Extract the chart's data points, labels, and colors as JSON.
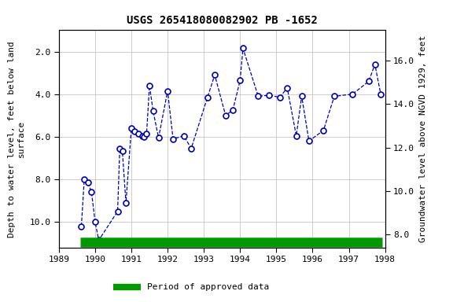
{
  "title": "USGS 265418080082902 PB -1652",
  "ylabel_left": "Depth to water level, feet below land\nsurface",
  "ylabel_right": "Groundwater level above NGVD 1929, feet",
  "legend_label": "Period of approved data",
  "xlim": [
    1989.0,
    1998.0
  ],
  "ylim_left": [
    11.2,
    1.0
  ],
  "ylim_right": [
    7.4,
    17.4
  ],
  "yticks_left": [
    2.0,
    4.0,
    6.0,
    8.0,
    10.0
  ],
  "yticks_right": [
    8.0,
    10.0,
    12.0,
    14.0,
    16.0
  ],
  "xticks": [
    1989,
    1990,
    1991,
    1992,
    1993,
    1994,
    1995,
    1996,
    1997,
    1998
  ],
  "data_x": [
    1989.62,
    1989.7,
    1989.8,
    1989.9,
    1990.0,
    1990.1,
    1990.62,
    1990.68,
    1990.75,
    1990.85,
    1991.0,
    1991.08,
    1991.2,
    1991.3,
    1991.35,
    1991.42,
    1991.5,
    1991.6,
    1991.75,
    1992.0,
    1992.15,
    1992.45,
    1992.65,
    1993.1,
    1993.3,
    1993.6,
    1993.8,
    1994.0,
    1994.08,
    1994.5,
    1994.8,
    1995.1,
    1995.3,
    1995.55,
    1995.7,
    1995.9,
    1996.3,
    1996.6,
    1997.1,
    1997.55,
    1997.72,
    1997.88
  ],
  "data_y": [
    10.2,
    8.0,
    8.15,
    8.6,
    10.0,
    10.85,
    9.5,
    6.55,
    6.65,
    9.1,
    5.6,
    5.75,
    5.85,
    5.95,
    6.0,
    5.85,
    3.6,
    4.8,
    6.05,
    3.85,
    6.1,
    5.95,
    6.55,
    4.15,
    3.1,
    5.0,
    4.75,
    3.35,
    1.85,
    4.1,
    4.05,
    4.15,
    3.7,
    5.95,
    4.1,
    6.2,
    5.7,
    4.1,
    4.0,
    3.4,
    2.6,
    4.0
  ],
  "line_color": "#0000BB",
  "marker_color": "#0000BB",
  "marker_face": "#ffffff",
  "background_color": "#ffffff",
  "grid_color": "#bbbbbb",
  "green_bar_color": "#009900",
  "green_bar_x_start": 1989.58,
  "green_bar_x_end": 1997.92,
  "title_fontsize": 10,
  "axis_label_fontsize": 8,
  "tick_fontsize": 8
}
